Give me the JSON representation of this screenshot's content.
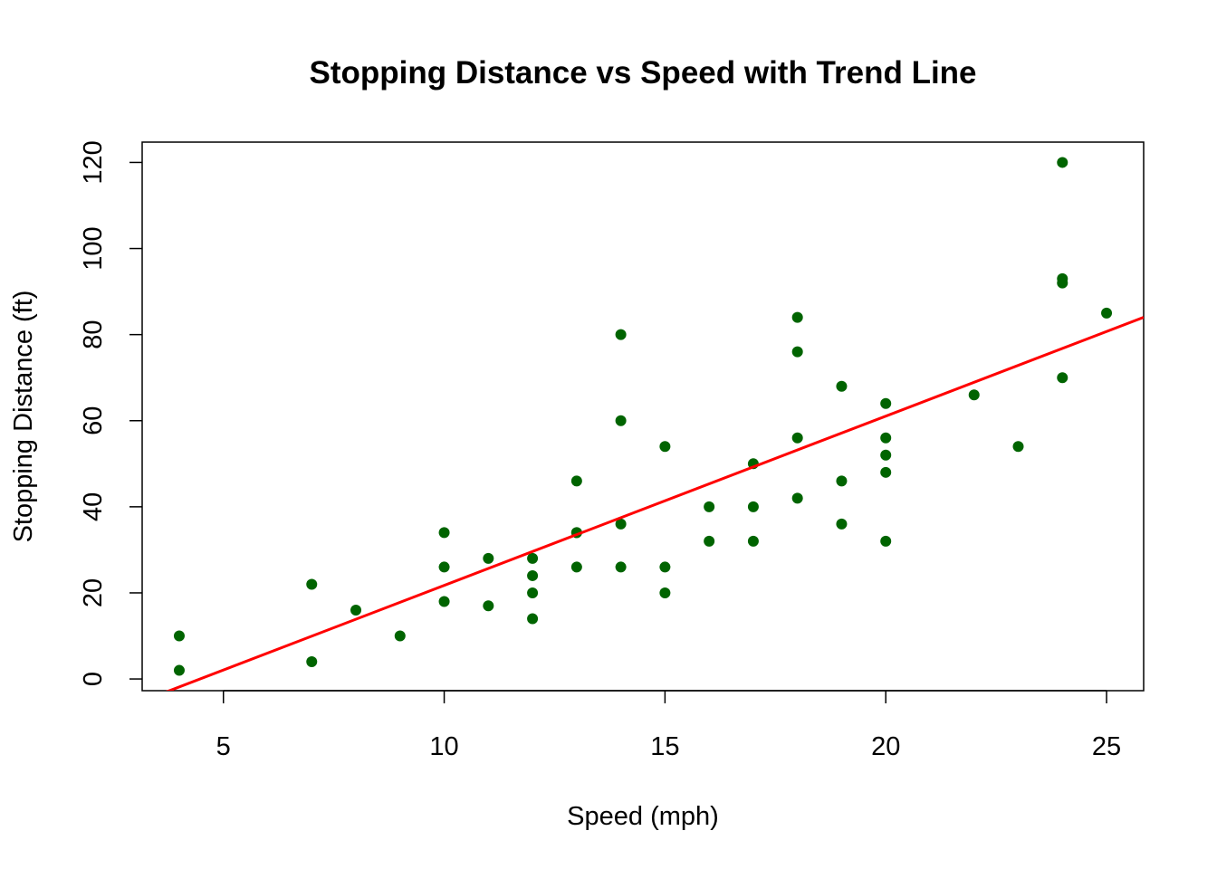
{
  "chart_data": {
    "type": "scatter",
    "title": "Stopping Distance vs Speed with Trend Line",
    "xlabel": "Speed (mph)",
    "ylabel": "Stopping Distance (ft)",
    "xlim": [
      3.16,
      25.84
    ],
    "ylim": [
      -2.72,
      124.72
    ],
    "xticks": [
      5,
      10,
      15,
      20,
      25
    ],
    "yticks": [
      0,
      20,
      40,
      60,
      80,
      100,
      120
    ],
    "grid": false,
    "point_color": "#006400",
    "line_color": "#ff0000",
    "trend": {
      "intercept": -17.579,
      "slope": 3.932
    },
    "x": [
      4,
      4,
      7,
      7,
      8,
      9,
      10,
      10,
      10,
      11,
      11,
      12,
      12,
      12,
      12,
      13,
      13,
      13,
      13,
      14,
      14,
      14,
      14,
      15,
      15,
      15,
      16,
      16,
      17,
      17,
      17,
      18,
      18,
      18,
      18,
      19,
      19,
      19,
      20,
      20,
      20,
      20,
      20,
      22,
      23,
      24,
      24,
      24,
      24,
      25
    ],
    "y": [
      2,
      10,
      4,
      22,
      16,
      10,
      18,
      26,
      34,
      17,
      28,
      14,
      20,
      24,
      28,
      26,
      34,
      34,
      46,
      26,
      36,
      60,
      80,
      20,
      26,
      54,
      32,
      40,
      32,
      40,
      50,
      42,
      56,
      76,
      84,
      36,
      46,
      68,
      32,
      48,
      52,
      56,
      64,
      66,
      54,
      70,
      92,
      93,
      120,
      85
    ]
  }
}
